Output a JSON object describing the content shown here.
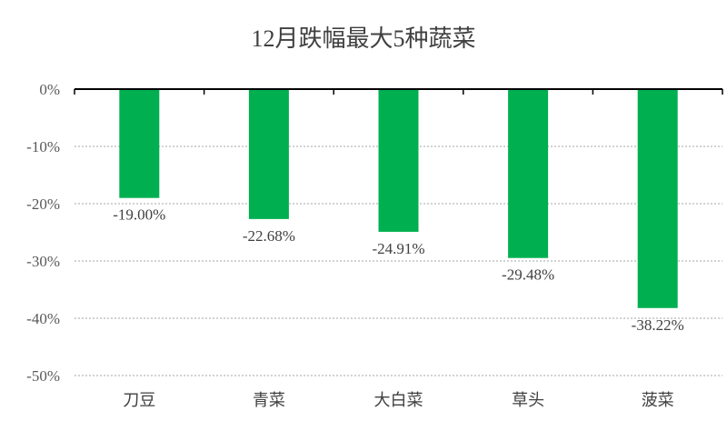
{
  "chart_data": {
    "type": "bar",
    "title": "12月跌幅最大5种蔬菜",
    "categories": [
      "刀豆",
      "青菜",
      "大白菜",
      "草头",
      "菠菜"
    ],
    "values": [
      -19.0,
      -22.68,
      -24.91,
      -29.48,
      -38.22
    ],
    "data_labels": [
      "-19.00%",
      "-22.68%",
      "-24.91%",
      "-29.48%",
      "-38.22%"
    ],
    "ylim": [
      -50,
      0
    ],
    "yticks": [
      0,
      -10,
      -20,
      -30,
      -40,
      -50
    ],
    "ytick_labels": [
      "0%",
      "-10%",
      "-20%",
      "-30%",
      "-40%",
      "-50%"
    ],
    "xlabel": "",
    "ylabel": "",
    "grid": "horizontal dotted",
    "legend": "none",
    "bar_color": "#00b050"
  }
}
